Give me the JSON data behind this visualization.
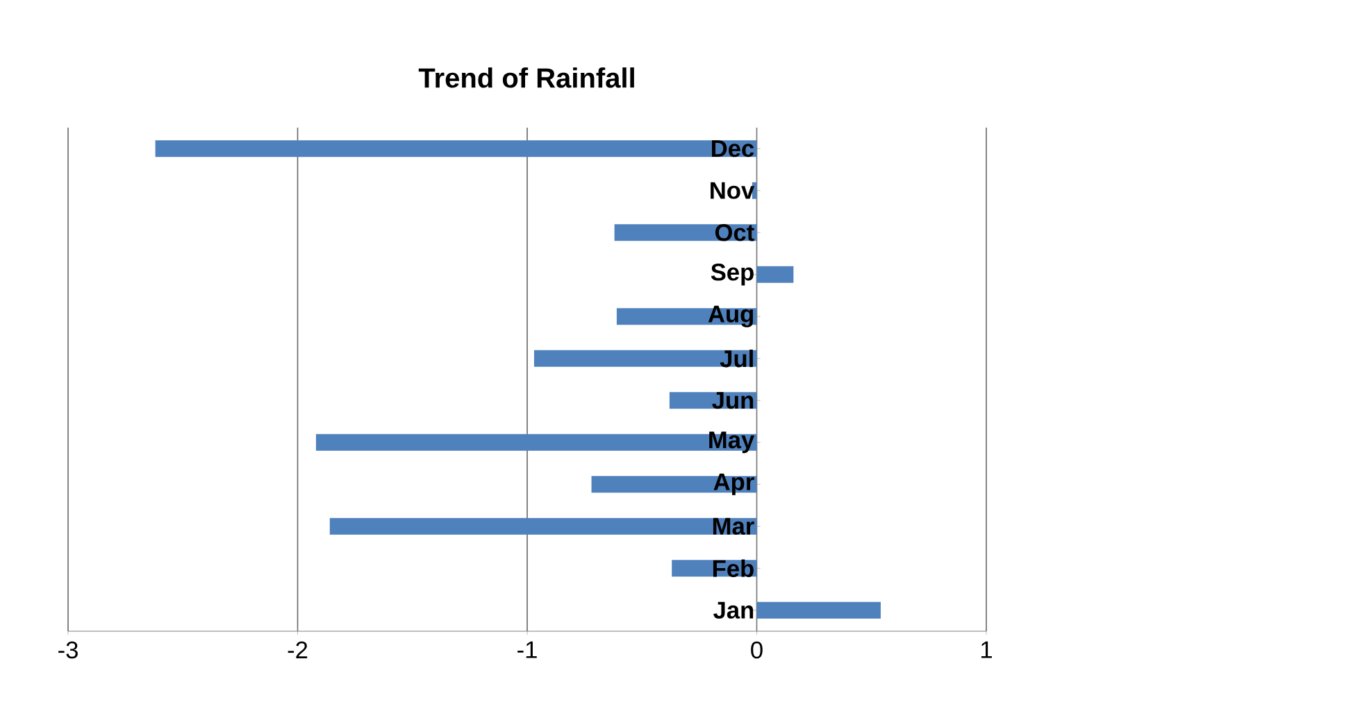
{
  "chart_data": {
    "type": "bar",
    "orientation": "horizontal",
    "title": "Trend of Rainfall",
    "categories": [
      "Dec",
      "Nov",
      "Oct",
      "Sep",
      "Aug",
      "Jul",
      "Jun",
      "May",
      "Apr",
      "Mar",
      "Feb",
      "Jan"
    ],
    "values": [
      -2.62,
      -0.02,
      -0.62,
      0.16,
      -0.61,
      -0.97,
      -0.38,
      -1.92,
      -0.72,
      -1.86,
      -0.37,
      0.54
    ],
    "color": "#4f81bd",
    "xlim": [
      -3,
      1
    ],
    "xticks": [
      -3,
      -2,
      -1,
      0,
      1
    ],
    "grid": "x"
  }
}
